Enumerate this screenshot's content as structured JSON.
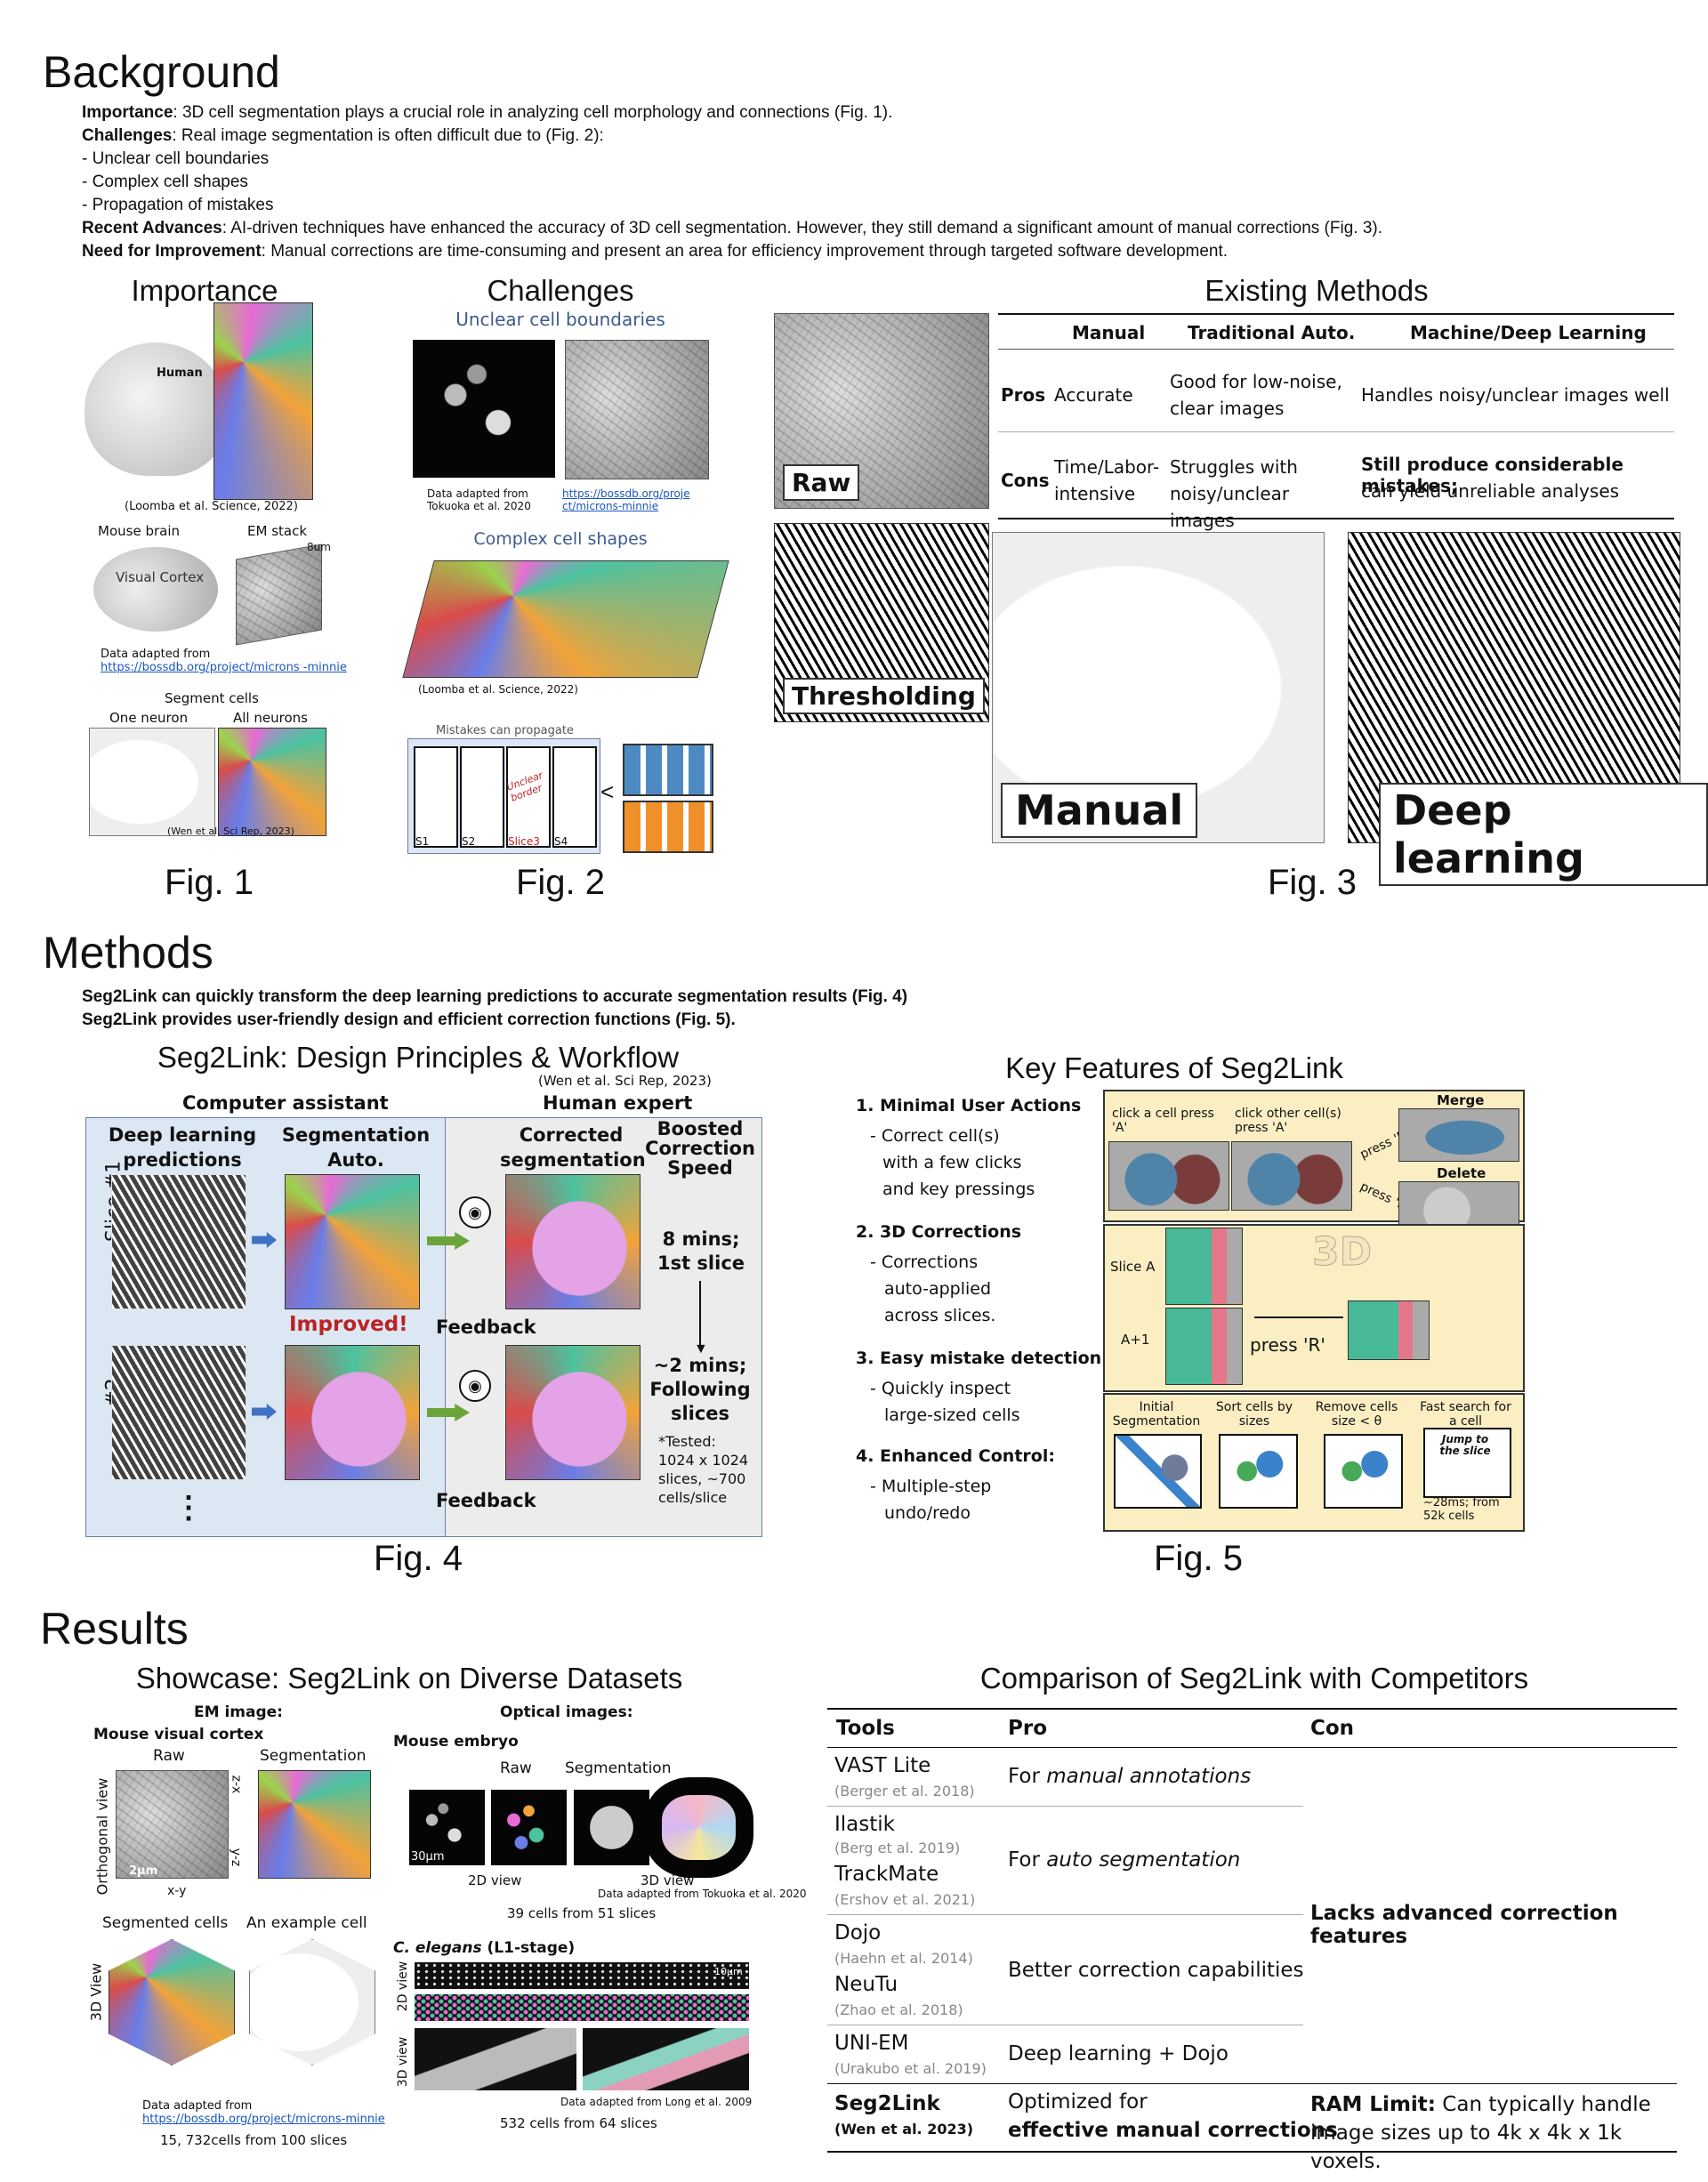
{
  "background": {
    "heading": "Background",
    "importance_label": "Importance",
    "importance_text": ": 3D cell segmentation plays a crucial role in analyzing cell morphology and connections (Fig. 1).",
    "challenges_label": "Challenges",
    "challenges_text": ": Real image segmentation is often difficult due to (Fig. 2):",
    "challenge_items": [
      "- Unclear cell boundaries",
      "- Complex cell shapes",
      "- Propagation of mistakes"
    ],
    "advances_label": "Recent Advances",
    "advances_text": ": AI-driven techniques have enhanced the accuracy of 3D cell segmentation. However, they still demand a significant amount of manual corrections (Fig. 3).",
    "need_label": "Need for Improvement",
    "need_text": ": Manual corrections are time-consuming and present an area for efficiency improvement through targeted software development."
  },
  "fig1": {
    "title": "Importance",
    "human": "Human",
    "cite1": "(Loomba et al. Science, 2022)",
    "mouse_brain": "Mouse brain",
    "em_stack": "EM stack",
    "visual_cortex": "Visual Cortex",
    "dim": "8um",
    "data_adapted": "Data adapted from",
    "link": "https://bossdb.org/project/microns -minnie",
    "segment_cells": "Segment cells",
    "one_neuron": "One neuron",
    "all_neurons": "All neurons",
    "cite2": "(Wen et al. Sci Rep, 2023)",
    "label": "Fig. 1"
  },
  "fig2": {
    "title": "Challenges",
    "unclear": "Unclear cell boundaries",
    "data_adapted": "Data adapted from Tokuoka et al. 2020",
    "link": "https://bossdb.org/project/microns-minnie",
    "complex": "Complex cell shapes",
    "cite": "(Loomba et al. Science, 2022)",
    "mistakes": "Mistakes can propagate",
    "unclear_border": "Unclear border",
    "slices": [
      "S1",
      "S2",
      "Slice3",
      "S4"
    ],
    "label": "Fig. 2"
  },
  "fig3": {
    "title": "Existing Methods",
    "headers": [
      "",
      "Manual",
      "Traditional Auto.",
      "Machine/Deep Learning"
    ],
    "pros": [
      "Pros",
      "Accurate",
      "Good for low-noise, clear images",
      "Handles noisy/unclear images well"
    ],
    "cons": [
      "Cons",
      "Time/Labor-intensive",
      "Struggles with noisy/unclear images",
      "Still produce considerable mistakes;",
      "can yield unreliable analyses"
    ],
    "raw": "Raw",
    "thresholding": "Thresholding",
    "manual": "Manual",
    "deep": "Deep learning",
    "label": "Fig. 3"
  },
  "methods": {
    "heading": "Methods",
    "line1": "Seg2Link can quickly transform the deep learning predictions to accurate segmentation results (Fig. 4)",
    "line2": "Seg2Link provides user-friendly design and efficient correction functions (Fig. 5)."
  },
  "fig4": {
    "title": "Seg2Link: Design Principles & Workflow",
    "cite": "(Wen et al. Sci Rep, 2023)",
    "computer": "Computer assistant",
    "human": "Human expert",
    "dl_pred": "Deep learning predictions",
    "seg_auto": "Segmentation Auto.",
    "corrected": "Corrected segmentation",
    "boosted": "Boosted Correction Speed",
    "slice1": "Slice #1",
    "slice2": "#2",
    "improved": "Improved!",
    "feedback": "Feedback",
    "time1": "8 mins; 1st slice",
    "time2": "~2 mins; Following slices",
    "tested": "*Tested: 1024 x 1024 slices, ~700 cells/slice",
    "dots": "⋮",
    "label": "Fig. 4"
  },
  "fig5": {
    "title": "Key Features of Seg2Link",
    "f1_title": "1. Minimal User Actions",
    "f1_text": [
      "- Correct cell(s)",
      "with a few clicks",
      "and key pressings"
    ],
    "f2_title": "2. 3D Corrections",
    "f2_text": [
      "- Corrections",
      "auto-applied",
      "across slices."
    ],
    "f3_title": "3. Easy mistake detection",
    "f3_text": [
      "- Quickly inspect",
      "large-sized cells"
    ],
    "f4_title": "4. Enhanced Control:",
    "f4_text": [
      "- Multiple-step",
      "undo/redo"
    ],
    "click_a": "click a cell press 'A'",
    "click_other": "click other cell(s) press 'A'",
    "merge": "Merge",
    "delete": "Delete",
    "press_m": "press 'M'",
    "press_d": "press 'D'",
    "three_d": "3D",
    "slice_a": "Slice A",
    "a1": "A+1",
    "press_r": "press 'R'",
    "init_seg": "Initial Segmentation",
    "sort": "Sort cells by sizes",
    "remove": "Remove cells size < θ",
    "fast": "Fast search for a cell",
    "jump": "Jump to the slice",
    "time": "~28ms; from 52k cells",
    "label": "Fig. 5"
  },
  "results": {
    "heading": "Results",
    "showcase_title": "Showcase: Seg2Link on Diverse Datasets",
    "em_image": "EM image:",
    "mouse_vc": "Mouse visual cortex",
    "raw": "Raw",
    "segmentation": "Segmentation",
    "ortho": "Orthogonal view",
    "zx": "z-x",
    "yz": "y-z",
    "xy": "x-y",
    "scale2": "2μm",
    "seg_cells": "Segmented cells",
    "example_cell": "An example cell",
    "view3d": "3D View",
    "em_data": "Data adapted from",
    "em_link": "https://bossdb.org/project/microns-minnie",
    "em_count": "15, 732cells from 100 slices",
    "optical": "Optical images:",
    "embryo": "Mouse embryo",
    "raw2": "Raw",
    "seg2": "Segmentation",
    "scale30": "30μm",
    "view2d": "2D view",
    "view3d_b": "3D view",
    "embryo_data": "Data adapted from Tokuoka et al. 2020",
    "embryo_count": "39 cells from 51 slices",
    "celegans": "C. elegans",
    "celegans_stage": " (L1-stage)",
    "c2d": "2D view",
    "c3d": "3D view",
    "scale10": "10μm",
    "cel_data": "Data adapted from Long et al. 2009",
    "cel_count": "532 cells from 64 slices"
  },
  "comparison": {
    "title": "Comparison of Seg2Link with Competitors",
    "headers": [
      "Tools",
      "Pro",
      "Con"
    ],
    "vast": "VAST Lite",
    "vast_cite": "(Berger et al. 2018)",
    "vast_pro_pre": "For ",
    "vast_pro_it": "manual annotations",
    "ilastik": "Ilastik",
    "ilastik_cite": "(Berg et al. 2019)",
    "trackmate": "TrackMate",
    "trackmate_cite": "(Ershov et al. 2021)",
    "auto_pro_pre": "For ",
    "auto_pro_it": "auto segmentation",
    "dojo": "Dojo",
    "dojo_cite": "(Haehn et al. 2014)",
    "neutu": "NeuTu",
    "neutu_cite": "(Zhao et al. 2018)",
    "better": "Better correction capabilities",
    "uniem": "UNI-EM",
    "uniem_cite": "(Urakubo et al. 2019)",
    "dl_dojo": "Deep learning + Dojo",
    "lacks": "Lacks advanced correction features",
    "seg2link": "Seg2Link",
    "seg2link_cite": "(Wen et al. 2023)",
    "opt_pre": "Optimized for",
    "opt_b": "effective manual corrections",
    "ram_b": "RAM Limit:",
    "ram_text": " Can typically handle image sizes up to 4k x 4k x 1k voxels."
  }
}
